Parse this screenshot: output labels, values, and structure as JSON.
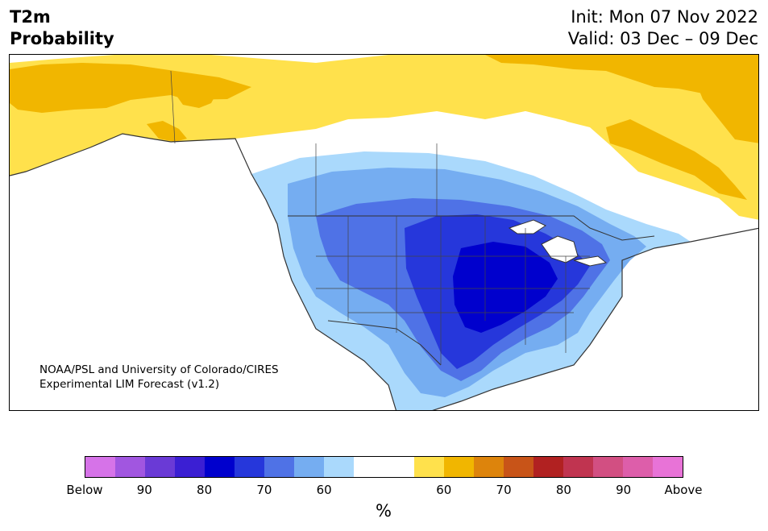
{
  "header": {
    "variable": "T2m",
    "quantity": "Probability",
    "init": "Init: Mon 07 Nov 2022",
    "valid": "Valid: 03 Dec – 09 Dec"
  },
  "credit": {
    "line1": "NOAA/PSL and University of Colorado/CIRES",
    "line2": "Experimental LIM Forecast (v1.2)"
  },
  "colorbar": {
    "unit": "%",
    "segments": [
      {
        "color": "#d673e8",
        "category": "below"
      },
      {
        "color": "#a156e0",
        "category": "below"
      },
      {
        "color": "#6a3ad6",
        "category": "below"
      },
      {
        "color": "#3b1fd3",
        "category": "below"
      },
      {
        "color": "#0000cd",
        "category": "below"
      },
      {
        "color": "#2637db",
        "category": "below"
      },
      {
        "color": "#4f72e6",
        "category": "below"
      },
      {
        "color": "#75adf1",
        "category": "below"
      },
      {
        "color": "#aad9fc",
        "category": "below"
      },
      {
        "color": "#ffffff",
        "category": "neutral"
      },
      {
        "color": "#ffe14c",
        "category": "above"
      },
      {
        "color": "#f1b600",
        "category": "above"
      },
      {
        "color": "#dd840c",
        "category": "above"
      },
      {
        "color": "#c85418",
        "category": "above"
      },
      {
        "color": "#b12121",
        "category": "above"
      },
      {
        "color": "#c03450",
        "category": "above"
      },
      {
        "color": "#d24f82",
        "category": "above"
      },
      {
        "color": "#dd5eaa",
        "category": "above"
      },
      {
        "color": "#e873d7",
        "category": "above"
      }
    ],
    "tick_labels": [
      "Below",
      "90",
      "80",
      "70",
      "60",
      "60",
      "70",
      "80",
      "90",
      "Above"
    ]
  },
  "map": {
    "region": "North America",
    "fills": {
      "above_60": "#ffe14c",
      "above_70": "#f1b600",
      "below_60": "#aad9fc",
      "below_70": "#75adf1",
      "below_80": "#4f72e6",
      "below_90": "#2637db",
      "below_max": "#0000cd"
    }
  }
}
